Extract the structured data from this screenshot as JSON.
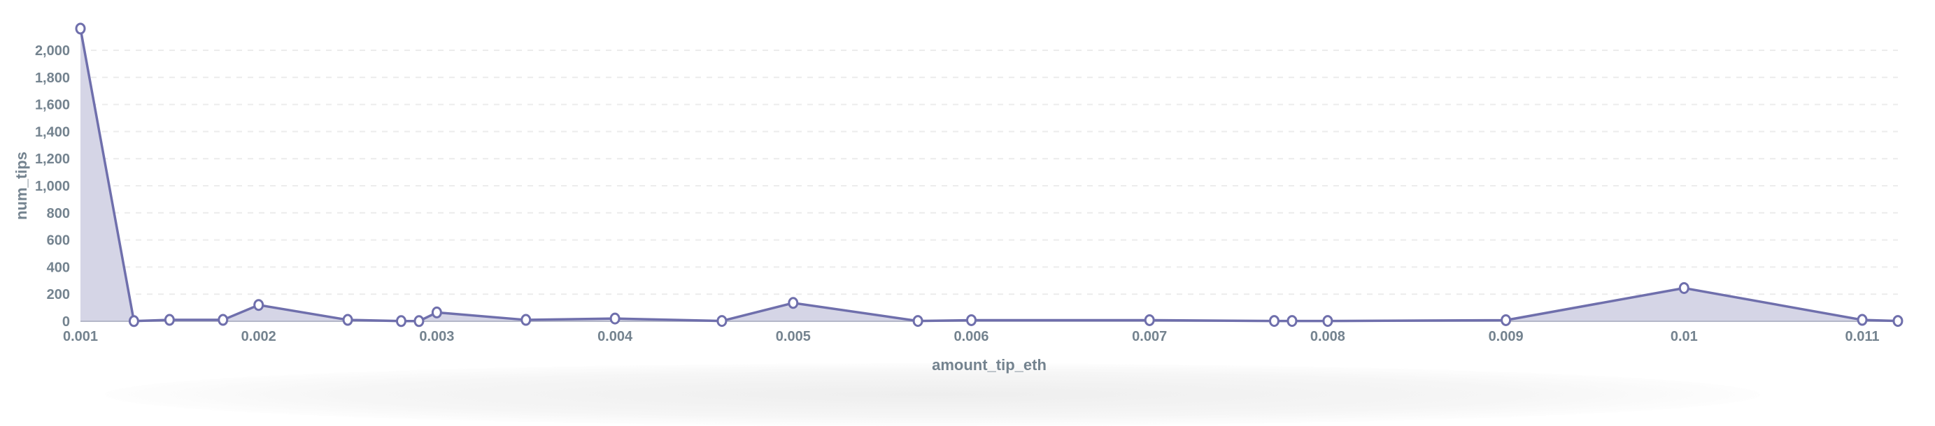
{
  "chart_data": {
    "type": "area",
    "xlabel": "amount_tip_eth",
    "ylabel": "num_tips",
    "xlim": [
      0.001,
      0.0112
    ],
    "ylim": [
      0,
      2160
    ],
    "grid": true,
    "x_ticks": [
      "0.001",
      "0.002",
      "0.003",
      "0.004",
      "0.005",
      "0.006",
      "0.007",
      "0.008",
      "0.009",
      "0.01",
      "0.011"
    ],
    "y_ticks": [
      "0",
      "200",
      "400",
      "600",
      "800",
      "1,000",
      "1,200",
      "1,400",
      "1,600",
      "1,800",
      "2,000"
    ],
    "x": [
      0.001,
      0.0013,
      0.0015,
      0.0018,
      0.002,
      0.0025,
      0.0028,
      0.0029,
      0.003,
      0.0035,
      0.004,
      0.0046,
      0.005,
      0.0057,
      0.006,
      0.007,
      0.0077,
      0.0078,
      0.008,
      0.009,
      0.01,
      0.011,
      0.0112
    ],
    "y": [
      2160,
      1,
      10,
      10,
      120,
      10,
      1,
      1,
      65,
      10,
      20,
      2,
      135,
      2,
      8,
      8,
      2,
      2,
      2,
      8,
      245,
      10,
      2
    ],
    "colors": {
      "line": "#6f6fac",
      "fill": "#d5d5e6",
      "text": "#74838f",
      "grid": "#ececec"
    }
  }
}
